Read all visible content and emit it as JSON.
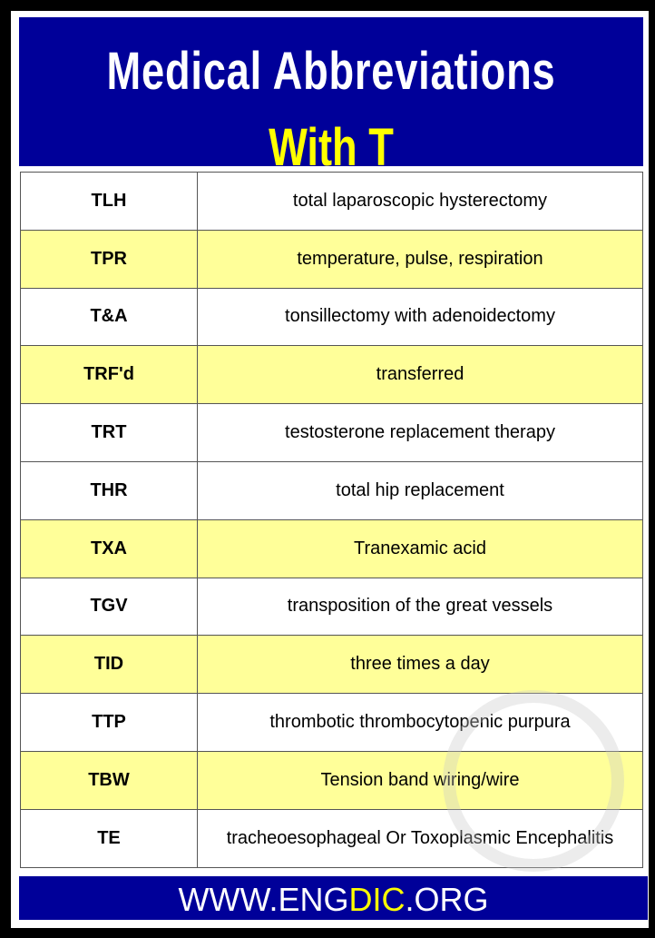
{
  "header": {
    "title": "Medical Abbreviations",
    "subtitle": "With T"
  },
  "rows": [
    {
      "abbr": "TLH",
      "meaning": "total laparoscopic hysterectomy",
      "highlight": false
    },
    {
      "abbr": "TPR",
      "meaning": "temperature, pulse, respiration",
      "highlight": true
    },
    {
      "abbr": "T&A",
      "meaning": "tonsillectomy with adenoidectomy",
      "highlight": false
    },
    {
      "abbr": "TRF'd",
      "meaning": "transferred",
      "highlight": true
    },
    {
      "abbr": "TRT",
      "meaning": "testosterone replacement therapy",
      "highlight": false
    },
    {
      "abbr": "THR",
      "meaning": "total hip replacement",
      "highlight": false
    },
    {
      "abbr": "TXA",
      "meaning": "Tranexamic acid",
      "highlight": true
    },
    {
      "abbr": "TGV",
      "meaning": "transposition of the great vessels",
      "highlight": false
    },
    {
      "abbr": "TID",
      "meaning": "three times a day",
      "highlight": true
    },
    {
      "abbr": "TTP",
      "meaning": "thrombotic thrombocytopenic purpura",
      "highlight": false
    },
    {
      "abbr": "TBW",
      "meaning": "Tension band wiring/wire",
      "highlight": true
    },
    {
      "abbr": "TE",
      "meaning": "tracheoesophageal Or Toxoplasmic Encephalitis",
      "highlight": false
    }
  ],
  "footer": {
    "prefix": "WWW.ENG",
    "highlight": "DIC",
    "suffix": ".ORG"
  },
  "colors": {
    "header_bg": "#000099",
    "title": "#ffffff",
    "subtitle": "#ffff00",
    "row_highlight": "#ffff99"
  }
}
